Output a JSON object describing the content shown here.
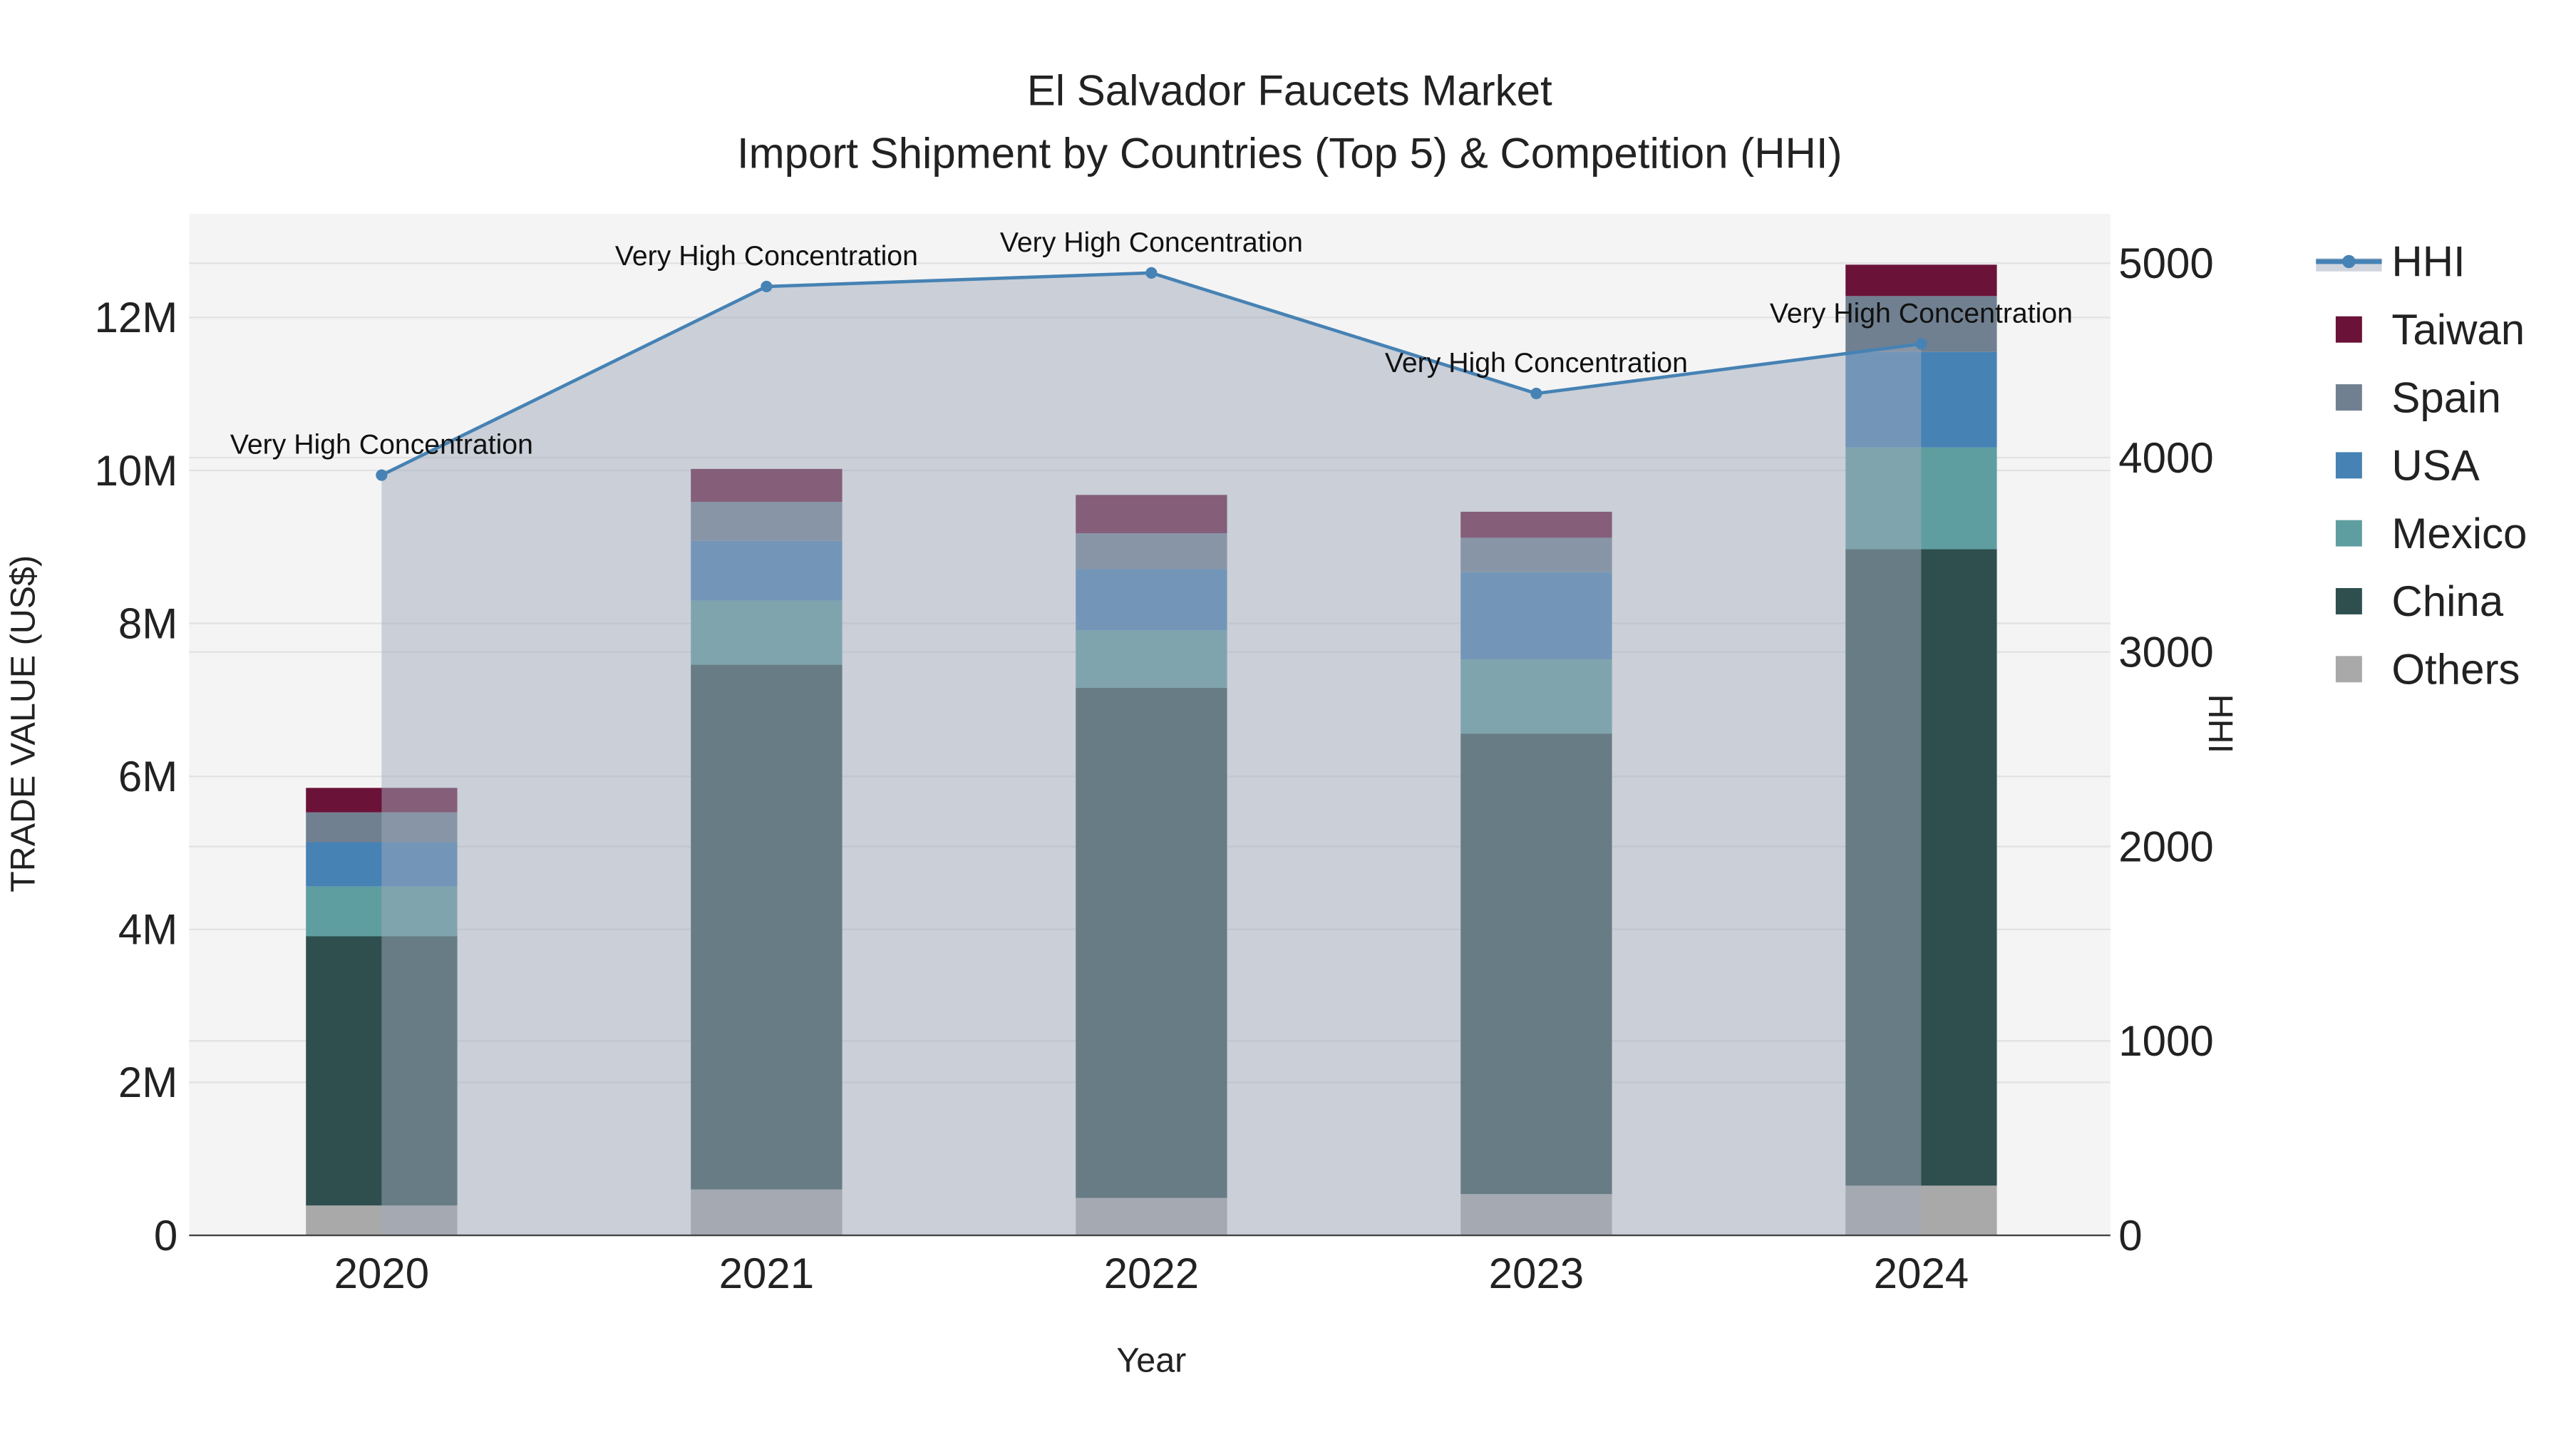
{
  "chart_data": {
    "type": "bar",
    "stacked": true,
    "title": "El Salvador Faucets Market",
    "subtitle": "Import Shipment by Countries (Top 5) & Competition (HHI)",
    "xlabel": "Year",
    "ylabel": "TRADE VALUE (US$)",
    "y2label": "HHI",
    "categories": [
      "2020",
      "2021",
      "2022",
      "2023",
      "2024"
    ],
    "ylim": [
      0,
      13300000
    ],
    "y2lim": [
      0,
      5250
    ],
    "yticks": [
      0,
      2000000,
      4000000,
      6000000,
      8000000,
      10000000,
      12000000
    ],
    "ytick_labels": [
      "0",
      "2M",
      "4M",
      "6M",
      "8M",
      "10M",
      "12M"
    ],
    "y2ticks": [
      0,
      1000,
      2000,
      3000,
      4000,
      5000
    ],
    "y2tick_labels": [
      "0",
      "1000",
      "2000",
      "3000",
      "4000",
      "5000"
    ],
    "grid": true,
    "legend_position": "right",
    "series": [
      {
        "name": "Others",
        "color": "#a9a9a9",
        "values": [
          390000,
          600000,
          490000,
          540000,
          650000
        ]
      },
      {
        "name": "China",
        "color": "#2f4f4f",
        "values": [
          3520000,
          6860000,
          6670000,
          6020000,
          8320000
        ]
      },
      {
        "name": "Mexico",
        "color": "#5f9ea0",
        "values": [
          650000,
          840000,
          750000,
          970000,
          1330000
        ]
      },
      {
        "name": "USA",
        "color": "#4682b4",
        "values": [
          580000,
          780000,
          800000,
          1140000,
          1250000
        ]
      },
      {
        "name": "Spain",
        "color": "#708090",
        "values": [
          390000,
          510000,
          470000,
          450000,
          730000
        ]
      },
      {
        "name": "Taiwan",
        "color": "#6b1238",
        "values": [
          320000,
          430000,
          500000,
          340000,
          410000
        ]
      }
    ],
    "line": {
      "name": "HHI",
      "color": "#4682b4",
      "axis": "y2",
      "values": [
        3910,
        4880,
        4950,
        4330,
        4585
      ]
    },
    "annotations": [
      "Very High Concentration",
      "Very High Concentration",
      "Very High Concentration",
      "Very High Concentration",
      "Very High Concentration"
    ],
    "legend_order": [
      "HHI",
      "Taiwan",
      "Spain",
      "USA",
      "Mexico",
      "China",
      "Others"
    ]
  }
}
